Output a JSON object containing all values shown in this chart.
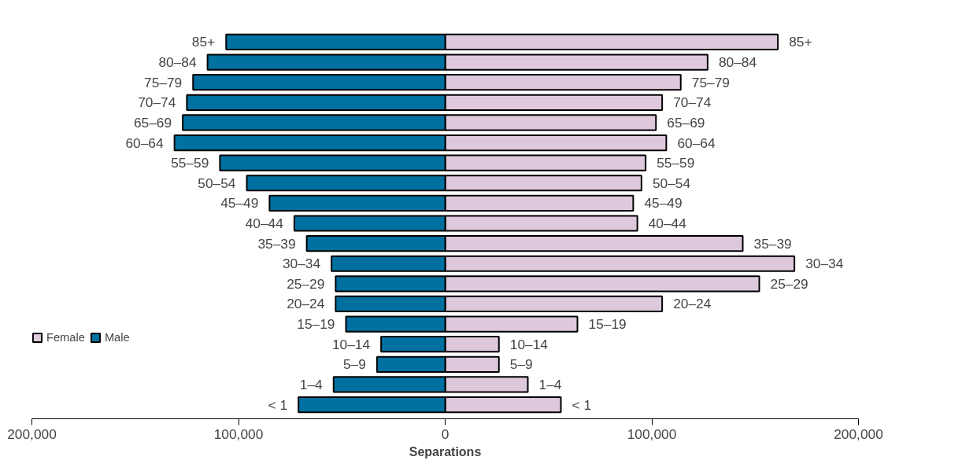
{
  "chart_data": {
    "type": "bar",
    "orientation": "horizontal",
    "xlabel": "Separations",
    "categories": [
      "85+",
      "80–84",
      "75–79",
      "70–74",
      "65–69",
      "60–64",
      "55–59",
      "50–54",
      "45–49",
      "40–44",
      "35–39",
      "30–34",
      "25–29",
      "20–24",
      "15–19",
      "10–14",
      "5–9",
      "1–4",
      "< 1"
    ],
    "series": [
      {
        "name": "Female",
        "color": "#ddc8dc",
        "values": [
          161000,
          127000,
          114000,
          105000,
          102000,
          107000,
          97000,
          95000,
          91000,
          93000,
          144000,
          169000,
          152000,
          105000,
          64000,
          26000,
          26000,
          40000,
          56000
        ]
      },
      {
        "name": "Male",
        "color": "#0070a0",
        "values": [
          -106000,
          -115000,
          -122000,
          -125000,
          -127000,
          -131000,
          -109000,
          -96000,
          -85000,
          -73000,
          -67000,
          -55000,
          -53000,
          -53000,
          -48000,
          -31000,
          -33000,
          -54000,
          -71000
        ]
      }
    ],
    "xlim": [
      -200000,
      200000
    ],
    "xticks": [
      {
        "value": -200000,
        "label": "200,000"
      },
      {
        "value": -100000,
        "label": "100,000"
      },
      0,
      {
        "value": 100000,
        "label": "100,000"
      },
      {
        "value": 200000,
        "label": "200,000"
      }
    ],
    "tick_labels": "x",
    "grid": false,
    "legend": "left",
    "stacked": true
  }
}
